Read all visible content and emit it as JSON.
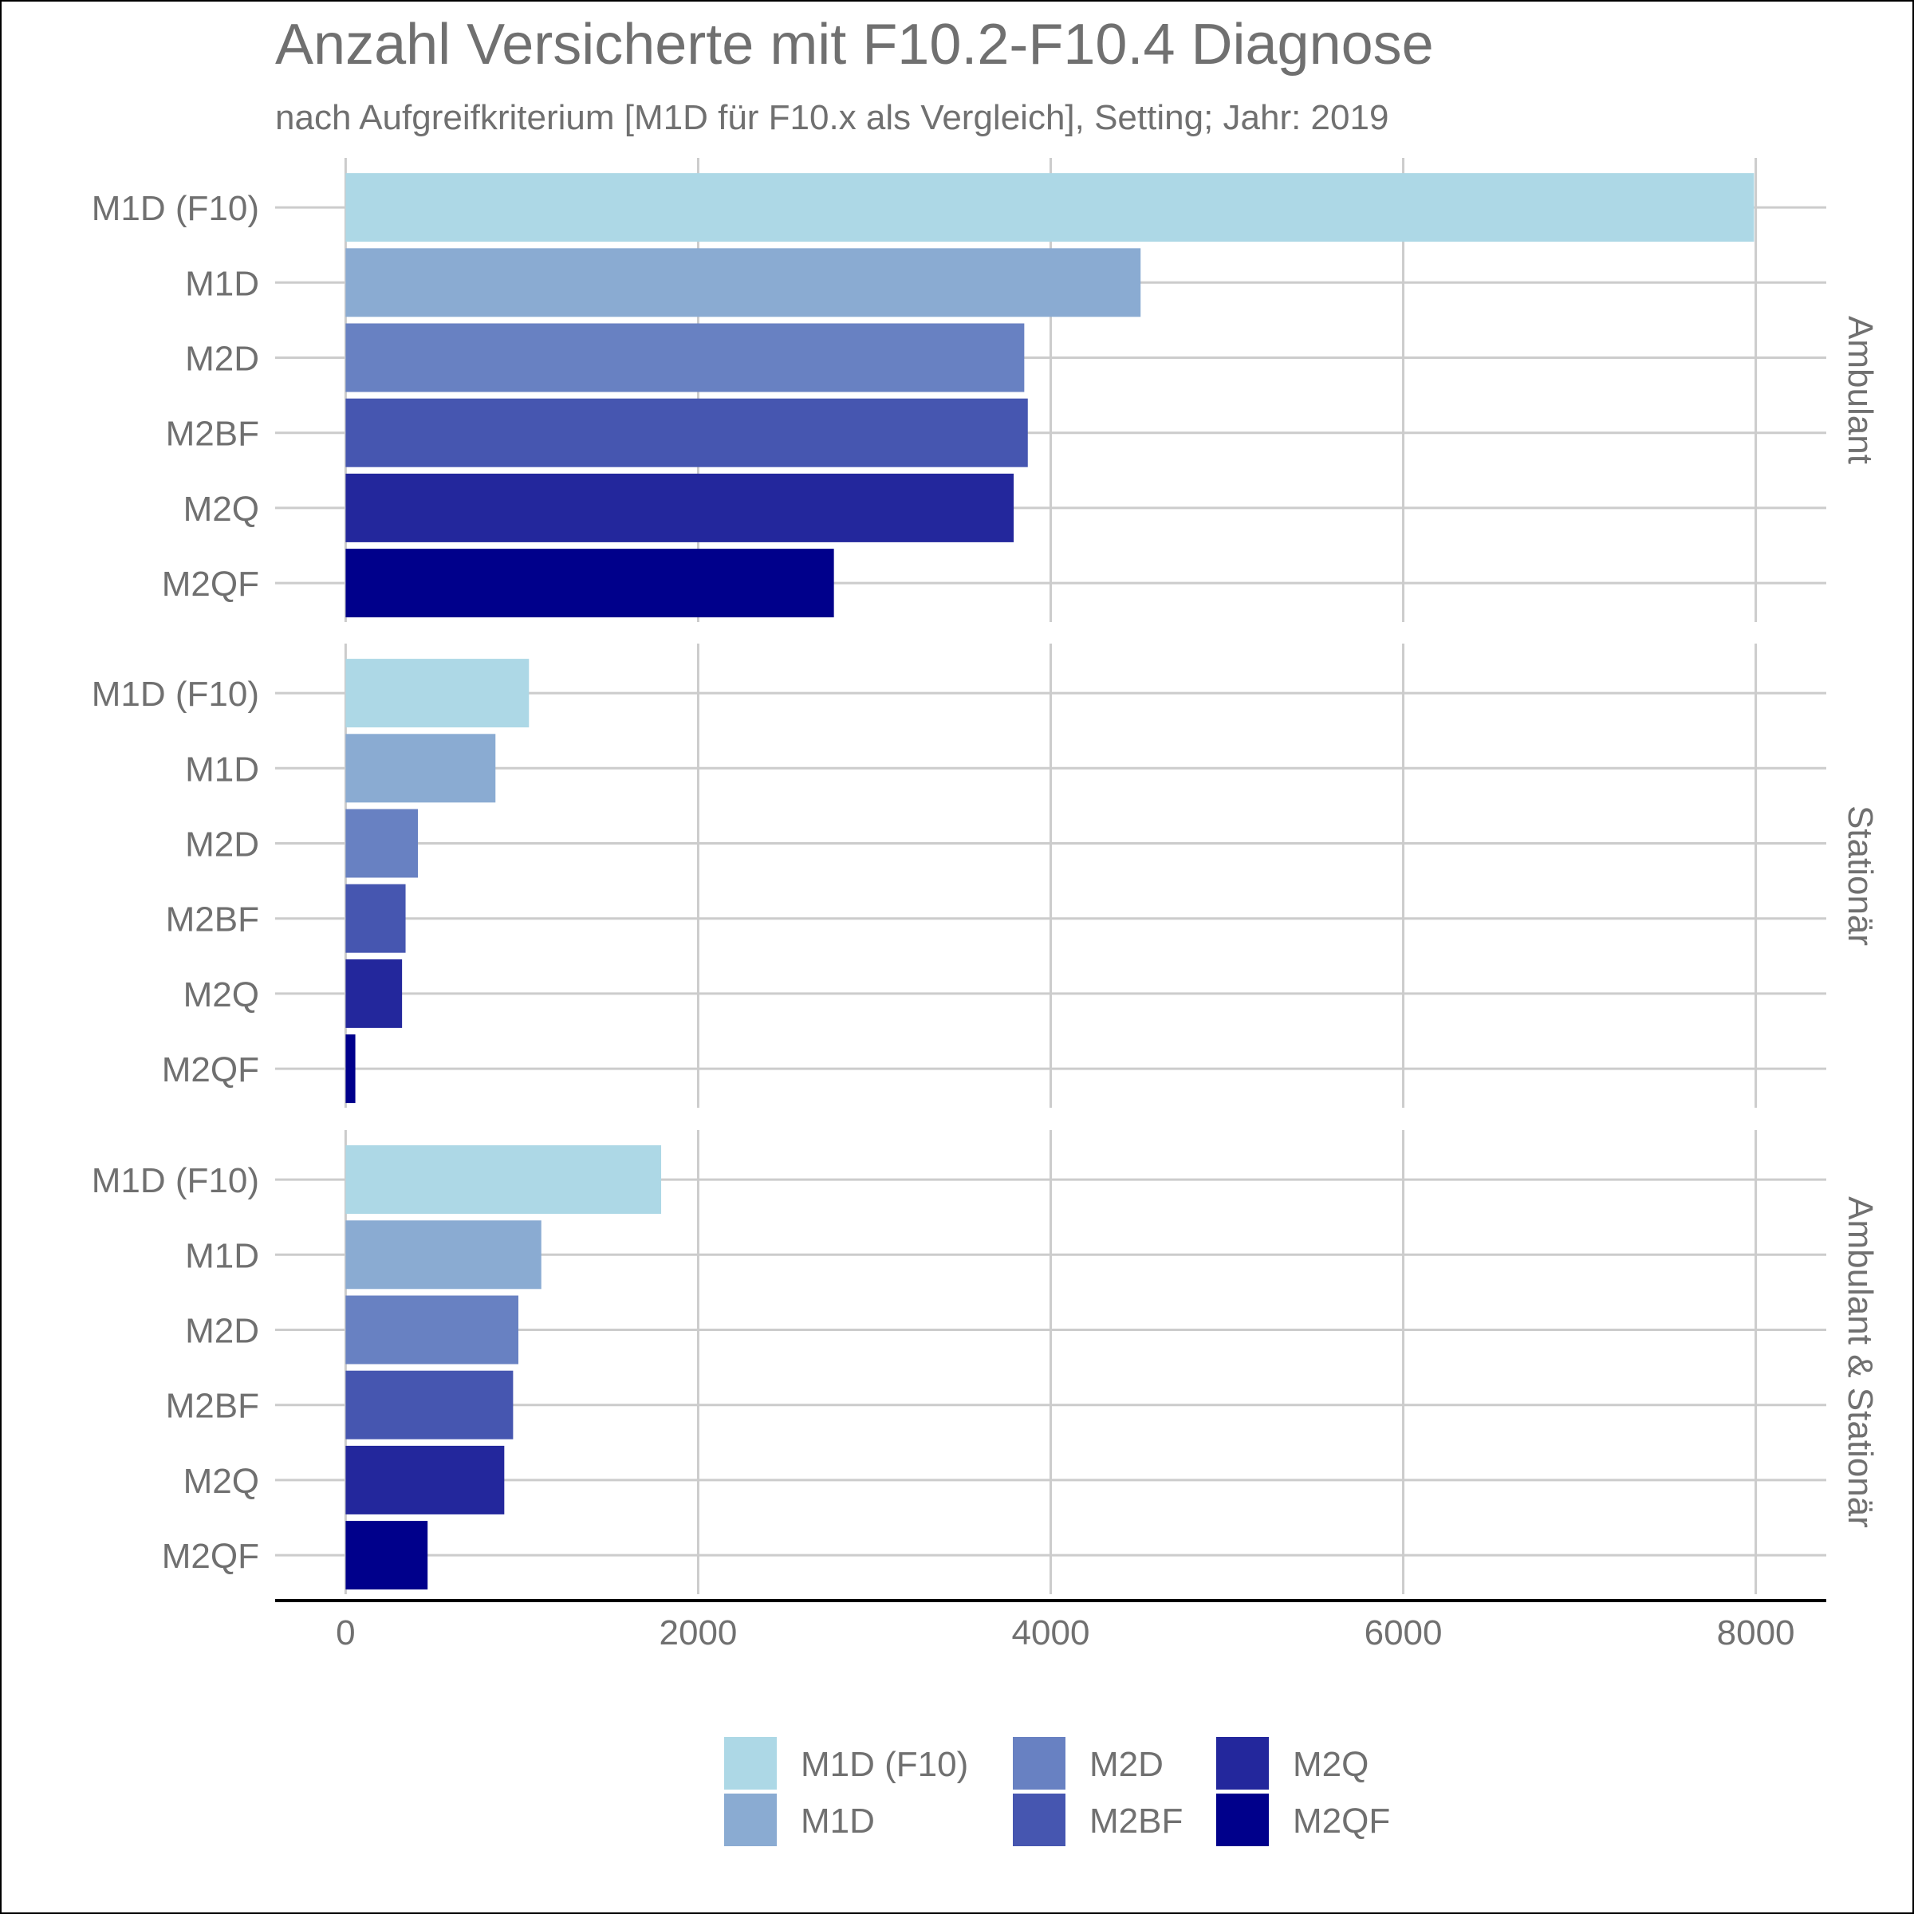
{
  "chart_data": {
    "type": "bar",
    "orientation": "horizontal",
    "title": "Anzahl Versicherte mit F10.2-F10.4 Diagnose",
    "subtitle": "nach Aufgreifkriterium [M1D für F10.x als Vergleich], Setting; Jahr: 2019",
    "categories": [
      "M1D (F10)",
      "M1D",
      "M2D",
      "M2BF",
      "M2Q",
      "M2QF"
    ],
    "colors": [
      "#ADD8E6",
      "#8AABD2",
      "#6881C2",
      "#4656B0",
      "#23279C",
      "#00008B"
    ],
    "xlim": [
      -400,
      8400
    ],
    "x_ticks": [
      0,
      2000,
      4000,
      6000,
      8000
    ],
    "x_tick_labels": [
      "0",
      "2000",
      "4000",
      "6000",
      "8000"
    ],
    "grid": true,
    "legend_position": "bottom",
    "legend_entries": [
      "M1D (F10)",
      "M1D",
      "M2D",
      "M2BF",
      "M2Q",
      "M2QF"
    ],
    "panels": [
      {
        "label": "Ambulant",
        "values": [
          7990,
          4510,
          3850,
          3870,
          3790,
          2770
        ]
      },
      {
        "label": "Stationär",
        "values": [
          1040,
          850,
          410,
          340,
          320,
          55
        ]
      },
      {
        "label": "Ambulant & Stationär",
        "values": [
          1790,
          1110,
          980,
          950,
          900,
          465
        ]
      }
    ]
  }
}
